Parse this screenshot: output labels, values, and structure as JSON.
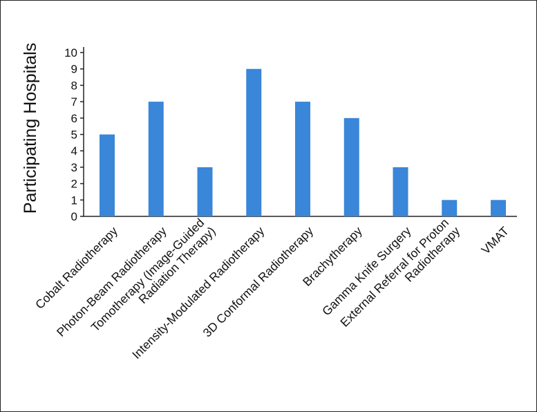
{
  "chart_data": {
    "type": "bar",
    "title": "",
    "xlabel": "",
    "ylabel": "Participating Hospitals",
    "ylim": [
      0,
      10
    ],
    "yticks": [
      0,
      1,
      2,
      3,
      4,
      5,
      6,
      7,
      8,
      9,
      10
    ],
    "grid": false,
    "legend": "none",
    "bar_color": "#3a86d8",
    "categories": [
      [
        "Cobalt Radiotherapy"
      ],
      [
        "Photon-Beam Radiotherapy"
      ],
      [
        "Tomotherapy (Image-Guided",
        "Radiation Therapy)"
      ],
      [
        "Intensity-Modulated Radiotherapy"
      ],
      [
        "3D Conformal Radiotherapy"
      ],
      [
        "Brachytherapy"
      ],
      [
        "Gamma Knife Surgery"
      ],
      [
        "External Referral for Proton",
        "Radiotherapy"
      ],
      [
        "VMAT"
      ]
    ],
    "values": [
      5,
      7,
      3,
      9,
      7,
      6,
      3,
      1,
      1
    ]
  }
}
